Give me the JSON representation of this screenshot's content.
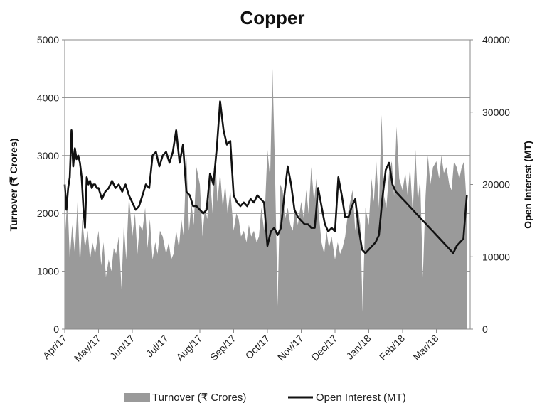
{
  "chart_data": {
    "type": "area+line",
    "title": "Copper",
    "ylabel_left": "Turnover (₹ Crores)",
    "ylabel_right": "Open Interest (MT)",
    "ylim_left": [
      0,
      5000
    ],
    "ylim_right": [
      0,
      40000
    ],
    "yticks_left": [
      "0",
      "1000",
      "2000",
      "3000",
      "4000",
      "5000"
    ],
    "yticks_right": [
      "0",
      "10000",
      "20000",
      "30000",
      "40000"
    ],
    "categories": [
      "Apr/17",
      "May/17",
      "Jun/17",
      "Jul/17",
      "Aug/17",
      "Sep/17",
      "Oct/17",
      "Nov/17",
      "Dec/17",
      "Jan/18",
      "Feb/18",
      "Mar/18"
    ],
    "grid": "horizontal",
    "legend_position": "bottom",
    "series": [
      {
        "name": "Turnover (₹ Crores)",
        "kind": "area",
        "axis": "left",
        "color": "#9a9a9a",
        "x": [
          0,
          0.08,
          0.15,
          0.22,
          0.3,
          0.38,
          0.45,
          0.52,
          0.6,
          0.68,
          0.75,
          0.82,
          0.9,
          1.0,
          1.08,
          1.15,
          1.22,
          1.3,
          1.38,
          1.45,
          1.52,
          1.6,
          1.68,
          1.75,
          1.82,
          1.9,
          2.0,
          2.08,
          2.15,
          2.22,
          2.3,
          2.38,
          2.45,
          2.52,
          2.6,
          2.68,
          2.75,
          2.82,
          2.9,
          3.0,
          3.08,
          3.15,
          3.22,
          3.3,
          3.38,
          3.45,
          3.52,
          3.6,
          3.68,
          3.75,
          3.82,
          3.9,
          4.0,
          4.08,
          4.15,
          4.22,
          4.3,
          4.38,
          4.45,
          4.52,
          4.6,
          4.68,
          4.75,
          4.82,
          4.9,
          5.0,
          5.08,
          5.15,
          5.22,
          5.3,
          5.38,
          5.45,
          5.52,
          5.6,
          5.68,
          5.75,
          5.82,
          5.9,
          6.0,
          6.08,
          6.15,
          6.22,
          6.3,
          6.38,
          6.45,
          6.52,
          6.6,
          6.68,
          6.75,
          6.82,
          6.9,
          7.0,
          7.08,
          7.15,
          7.22,
          7.3,
          7.38,
          7.45,
          7.52,
          7.6,
          7.68,
          7.75,
          7.82,
          7.9,
          8.0,
          8.08,
          8.15,
          8.22,
          8.3,
          8.38,
          8.45,
          8.52,
          8.6,
          8.68,
          8.75,
          8.82,
          8.9,
          9.0,
          9.08,
          9.15,
          9.22,
          9.3,
          9.38,
          9.45,
          9.52,
          9.6,
          9.68,
          9.75,
          9.82,
          9.9,
          10.0,
          10.08,
          10.15,
          10.22,
          10.3,
          10.38,
          10.45,
          10.52,
          10.6,
          10.68,
          10.75,
          10.82,
          10.9,
          11.0,
          11.08,
          11.15,
          11.22,
          11.3,
          11.38,
          11.45,
          11.52,
          11.6,
          11.68,
          11.75,
          11.82,
          11.9
        ],
        "values": [
          1500,
          2300,
          1200,
          1800,
          1300,
          2200,
          1100,
          1900,
          1400,
          1700,
          1200,
          1500,
          1300,
          1700,
          1100,
          1500,
          900,
          1200,
          1000,
          1400,
          1300,
          1600,
          700,
          1800,
          1200,
          2300,
          1600,
          2000,
          1300,
          1800,
          1700,
          2100,
          1400,
          1900,
          1200,
          1500,
          1300,
          1700,
          1600,
          1300,
          1500,
          1200,
          1300,
          1700,
          1400,
          1900,
          1600,
          3000,
          1700,
          2200,
          1800,
          2800,
          2500,
          1600,
          2100,
          1900,
          2600,
          2000,
          3100,
          2200,
          2700,
          2100,
          2500,
          2000,
          2400,
          1700,
          2000,
          1900,
          1600,
          1700,
          1500,
          1800,
          1600,
          1700,
          1500,
          1600,
          2100,
          1700,
          3100,
          2600,
          4500,
          2900,
          400,
          2500,
          2400,
          1900,
          2100,
          1800,
          1700,
          2100,
          1800,
          2200,
          1900,
          2400,
          2000,
          2800,
          2200,
          2600,
          2000,
          1500,
          1300,
          1700,
          1400,
          1600,
          1200,
          1500,
          1300,
          1400,
          1600,
          2000,
          2200,
          2400,
          1700,
          2100,
          1800,
          300,
          2100,
          1800,
          2600,
          2200,
          2900,
          2100,
          3700,
          2300,
          2100,
          2700,
          2900,
          2300,
          3500,
          2600,
          2400,
          2700,
          2300,
          2800,
          2000,
          3100,
          2200,
          2600,
          900,
          2300,
          3000,
          2500,
          2800,
          2900,
          2600,
          3000,
          2700,
          2800,
          2500,
          2400,
          2900,
          2800,
          2600,
          2800,
          2900,
          2100
        ]
      },
      {
        "name": "Open Interest (MT)",
        "kind": "line",
        "axis": "right",
        "color": "#111111",
        "x": [
          0,
          0.05,
          0.1,
          0.15,
          0.2,
          0.25,
          0.3,
          0.35,
          0.4,
          0.45,
          0.5,
          0.55,
          0.6,
          0.65,
          0.7,
          0.75,
          0.8,
          0.85,
          0.9,
          0.95,
          1.0,
          1.1,
          1.2,
          1.3,
          1.4,
          1.5,
          1.6,
          1.7,
          1.8,
          1.9,
          2.0,
          2.1,
          2.2,
          2.3,
          2.4,
          2.5,
          2.6,
          2.7,
          2.8,
          2.9,
          3.0,
          3.1,
          3.2,
          3.3,
          3.4,
          3.5,
          3.6,
          3.7,
          3.8,
          3.9,
          4.0,
          4.1,
          4.2,
          4.3,
          4.4,
          4.5,
          4.6,
          4.7,
          4.8,
          4.9,
          5.0,
          5.1,
          5.2,
          5.3,
          5.4,
          5.5,
          5.6,
          5.7,
          5.8,
          5.9,
          6.0,
          6.1,
          6.2,
          6.3,
          6.4,
          6.5,
          6.6,
          6.7,
          6.8,
          6.9,
          7.0,
          7.1,
          7.2,
          7.3,
          7.4,
          7.5,
          7.6,
          7.7,
          7.8,
          7.9,
          8.0,
          8.1,
          8.2,
          8.3,
          8.4,
          8.5,
          8.6,
          8.7,
          8.8,
          8.9,
          9.0,
          9.1,
          9.2,
          9.3,
          9.4,
          9.5,
          9.6,
          9.7,
          9.8,
          9.9,
          10.0,
          10.1,
          10.2,
          10.3,
          10.4,
          10.5,
          10.6,
          10.7,
          10.8,
          10.9,
          11.0,
          11.1,
          11.2,
          11.3,
          11.4,
          11.5,
          11.6,
          11.7,
          11.8,
          11.9
        ],
        "values": [
          20000,
          16500,
          19500,
          21000,
          27500,
          22500,
          25000,
          23500,
          24000,
          23000,
          21000,
          17000,
          14000,
          21000,
          20000,
          20500,
          19500,
          20000,
          20000,
          19500,
          19500,
          18000,
          19000,
          19500,
          20500,
          19500,
          20000,
          19000,
          20000,
          18500,
          17500,
          16500,
          17000,
          18500,
          20000,
          19500,
          24000,
          24500,
          22500,
          24000,
          24500,
          23000,
          24500,
          27500,
          23000,
          25500,
          19000,
          18500,
          17000,
          17000,
          16500,
          16000,
          16500,
          21500,
          20000,
          25000,
          31500,
          27500,
          25500,
          26000,
          18500,
          17500,
          17000,
          17500,
          17000,
          18000,
          17500,
          18500,
          18000,
          17500,
          11500,
          13500,
          14000,
          13000,
          14000,
          18500,
          22500,
          20000,
          16500,
          15500,
          15000,
          14500,
          14500,
          14000,
          14000,
          19500,
          17000,
          14500,
          13500,
          14000,
          13500,
          21000,
          18500,
          15500,
          15500,
          17000,
          18000,
          14000,
          11000,
          10500,
          11000,
          11500,
          12000,
          13000,
          18000,
          22000,
          23000,
          20000,
          19000,
          18500,
          18000,
          17500,
          17000,
          16500,
          16000,
          15500,
          15000,
          14500,
          14000,
          13500,
          13000,
          12500,
          12000,
          11500,
          11000,
          10500,
          11500,
          12000,
          12500,
          18500
        ]
      }
    ]
  }
}
